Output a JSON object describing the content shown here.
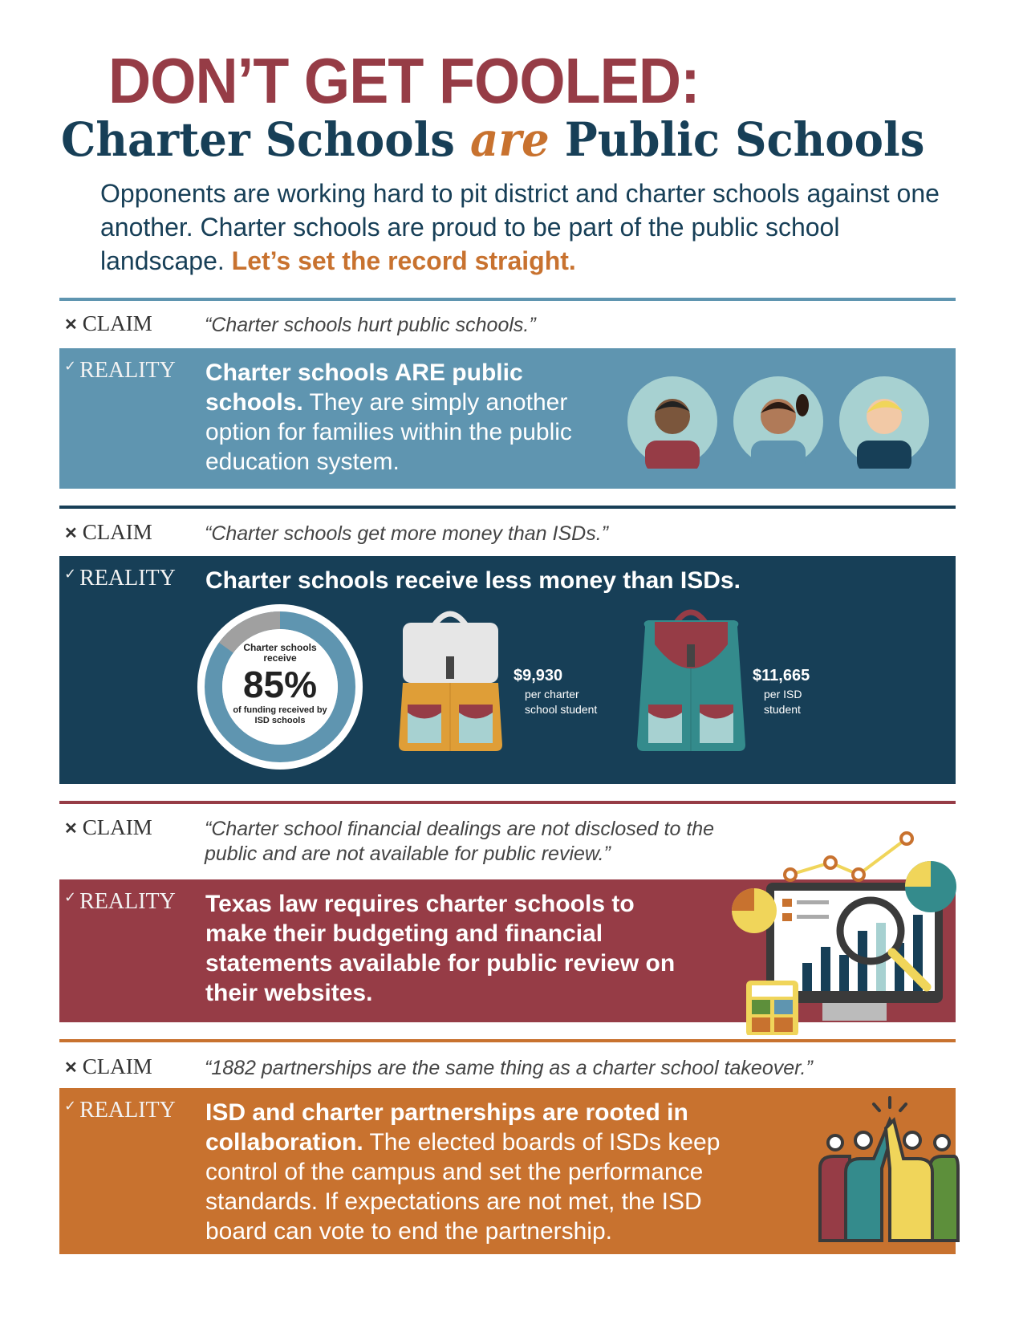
{
  "header": {
    "title": "DON’T GET FOOLED:",
    "subtitle_part1": "Charter Schools ",
    "subtitle_em": "are",
    "subtitle_part2": " Public Schools",
    "intro": "Opponents are working hard to pit district and charter schools against one another. Charter schools are proud to be part of the public school landscape. ",
    "intro_highlight": "Let’s set the record straight."
  },
  "labels": {
    "claim": "CLAIM",
    "reality": "REALITY",
    "claim_icon": "x-icon",
    "reality_icon": "check-icon"
  },
  "sections": [
    {
      "color": "#5f95b0",
      "claim": "“Charter schools hurt public schools.”",
      "reality_bold": "Charter schools ARE public schools.",
      "reality_rest": " They are simply another option for families within the public education system."
    },
    {
      "color": "#173f57",
      "claim": "“Charter schools get more money than ISDs.”",
      "reality_bold": "Charter schools receive less money than ISDs.",
      "reality_rest": ""
    },
    {
      "color": "#963c46",
      "claim": "“Charter school financial dealings are not disclosed to the public and are not available for public review.”",
      "reality_bold": "Texas law requires charter schools to make their budgeting and financial statements available for public review on their websites.",
      "reality_rest": ""
    },
    {
      "color": "#c8722f",
      "claim": "“1882 partnerships are the same thing as a charter school takeover.”",
      "reality_bold": "ISD and charter partnerships are rooted in collaboration.",
      "reality_rest": " The elected boards of ISDs keep control of the campus and set the performance standards. If expectations are not met, the ISD board can vote to end the partnership."
    }
  ],
  "funding": {
    "donut_top": "Charter schools receive",
    "percent": "85%",
    "percent_value": 85,
    "donut_bottom": "of funding received by ISD schools",
    "charter_amount": "$9,930",
    "charter_caption": "per charter school student",
    "isd_amount": "$11,665",
    "isd_caption": "per ISD student"
  }
}
